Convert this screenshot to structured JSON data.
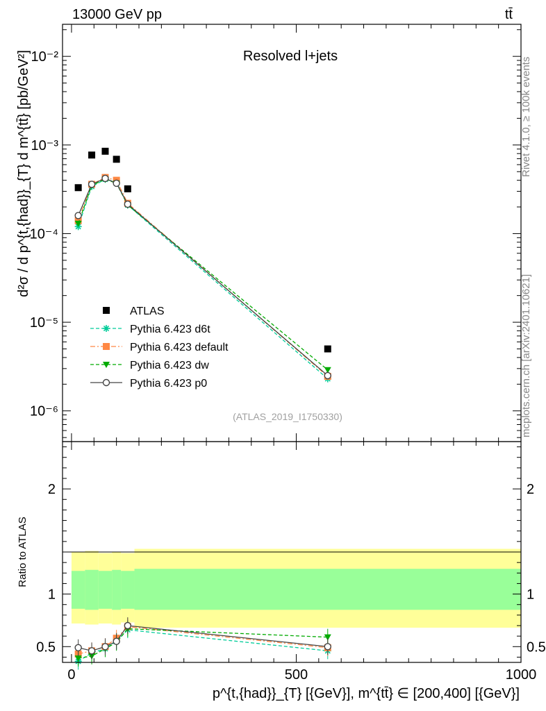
{
  "header": {
    "energy_label": "13000 GeV pp",
    "process_label": "tt̄"
  },
  "side_labels": {
    "rivet": "Rivet 4.1.0, ≥ 100k events",
    "mcplots": "mcplots.cern.ch [arXiv:2401.10621]"
  },
  "chart_data": [
    {
      "type": "scatter",
      "panel": "main",
      "title": "Resolved l+jets",
      "analysis_id": "(ATLAS_2019_I1750330)",
      "ylabel": "d²σ / d p^{t,{had}}_{T} d m^{tt̄} [pb/GeV²]",
      "yscale": "log",
      "ylim": [
        4.5e-07,
        0.023
      ],
      "xlim": [
        -20,
        1000
      ],
      "ytick_labels": [
        "10⁻⁶",
        "10⁻⁵",
        "10⁻⁴",
        "10⁻³",
        "10⁻²"
      ],
      "ytick_values": [
        1e-06,
        1e-05,
        0.0001,
        0.001,
        0.01
      ],
      "x": [
        15,
        45,
        75,
        100,
        125,
        570
      ],
      "series": [
        {
          "name": "ATLAS",
          "color": "#000000",
          "marker": "square",
          "line": "none",
          "values": [
            0.00033,
            0.00077,
            0.00085,
            0.00069,
            0.00032,
            5e-06
          ]
        },
        {
          "name": "Pythia 6.423 d6t",
          "color": "#00cc99",
          "marker": "star",
          "line": "dashed",
          "values": [
            0.00012,
            0.00034,
            0.00041,
            0.00038,
            0.00021,
            2.3e-06
          ]
        },
        {
          "name": "Pythia 6.423 default",
          "color": "#ff8844",
          "marker": "square",
          "line": "dashdot",
          "values": [
            0.00014,
            0.00036,
            0.00043,
            0.0004,
            0.00022,
            2.45e-06
          ]
        },
        {
          "name": "Pythia 6.423 dw",
          "color": "#00aa00",
          "marker": "triangle-down",
          "line": "dashed",
          "values": [
            0.00013,
            0.00035,
            0.00041,
            0.00037,
            0.00021,
            2.9e-06
          ]
        },
        {
          "name": "Pythia 6.423 p0",
          "color": "#444444",
          "marker": "open-circle",
          "line": "solid",
          "values": [
            0.00016,
            0.00036,
            0.00042,
            0.00037,
            0.000215,
            2.5e-06
          ]
        }
      ]
    },
    {
      "type": "scatter",
      "panel": "ratio",
      "ylabel": "Ratio to ATLAS",
      "xlabel": "p^{t,{had}}_{T} [{GeV}], m^{tt̄} ∈ [200,400] [{GeV}]",
      "ylim": [
        0.35,
        2.45
      ],
      "xlim": [
        -20,
        1000
      ],
      "xtick_labels": [
        "0",
        "500",
        "1000"
      ],
      "xtick_values": [
        0,
        500,
        1000
      ],
      "ytick_labels": [
        "0.5",
        "1",
        "2"
      ],
      "ytick_values": [
        0.5,
        1,
        2
      ],
      "x": [
        15,
        45,
        75,
        100,
        125,
        570
      ],
      "band_edges": [
        0,
        30,
        60,
        90,
        110,
        140,
        1000
      ],
      "uncertainty_bands": {
        "stat_syst_outer": {
          "color": "#ffff99",
          "lower": [
            0.72,
            0.71,
            0.72,
            0.71,
            0.73,
            0.68
          ],
          "upper": [
            1.4,
            1.41,
            1.39,
            1.4,
            1.39,
            1.43
          ]
        },
        "stat_inner": {
          "color": "#99ff99",
          "lower": [
            0.86,
            0.85,
            0.86,
            0.85,
            0.86,
            0.85
          ],
          "upper": [
            1.22,
            1.23,
            1.22,
            1.23,
            1.22,
            1.24
          ]
        }
      },
      "series": [
        {
          "name": "Pythia 6.423 d6t",
          "color": "#00cc99",
          "values": [
            0.36,
            0.44,
            0.48,
            0.55,
            0.66,
            0.46
          ]
        },
        {
          "name": "Pythia 6.423 default",
          "color": "#ff8844",
          "values": [
            0.43,
            0.46,
            0.5,
            0.58,
            0.69,
            0.49
          ]
        },
        {
          "name": "Pythia 6.423 dw",
          "color": "#00aa00",
          "values": [
            0.39,
            0.41,
            0.48,
            0.54,
            0.67,
            0.59
          ]
        },
        {
          "name": "Pythia 6.423 p0",
          "color": "#444444",
          "values": [
            0.49,
            0.46,
            0.5,
            0.55,
            0.7,
            0.5
          ]
        }
      ]
    }
  ]
}
